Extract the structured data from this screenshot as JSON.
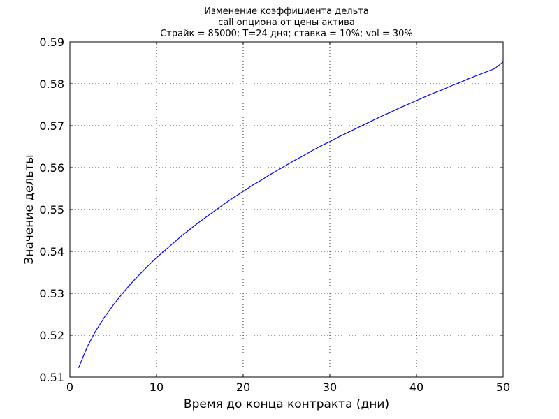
{
  "chart_data": {
    "type": "line",
    "title": [
      "Изменение коэффициента дельта",
      "call опциона от цены актива",
      "Страйк = 85000; T=24 дня; ставка = 10%; vol = 30%"
    ],
    "xlabel": "Время до конца контракта (дни)",
    "ylabel": "Значение дельты",
    "xlim": [
      0,
      50
    ],
    "ylim": [
      0.51,
      0.59
    ],
    "xticks": [
      0,
      10,
      20,
      30,
      40,
      50
    ],
    "xtick_labels": [
      "0",
      "10",
      "20",
      "30",
      "40",
      "50"
    ],
    "yticks": [
      0.51,
      0.52,
      0.53,
      0.54,
      0.55,
      0.56,
      0.57,
      0.58,
      0.59
    ],
    "ytick_labels": [
      "0.51",
      "0.52",
      "0.53",
      "0.54",
      "0.55",
      "0.56",
      "0.57",
      "0.58",
      "0.59"
    ],
    "grid": true,
    "line_color": "#0000ff",
    "series": [
      {
        "x": [
          1,
          2,
          3,
          4,
          5,
          6,
          7,
          8,
          9,
          10,
          11,
          12,
          13,
          14,
          15,
          16,
          17,
          18,
          19,
          20,
          21,
          22,
          23,
          24,
          25,
          26,
          27,
          28,
          29,
          30,
          31,
          32,
          33,
          34,
          35,
          36,
          37,
          38,
          39,
          40,
          41,
          42,
          43,
          44,
          45,
          46,
          47,
          48,
          49,
          50
        ],
        "y": [
          0.5122,
          0.5172,
          0.5211,
          0.5243,
          0.5272,
          0.5298,
          0.5322,
          0.5344,
          0.5365,
          0.5385,
          0.5403,
          0.5421,
          0.5439,
          0.5455,
          0.5471,
          0.5486,
          0.5501,
          0.5516,
          0.553,
          0.5543,
          0.5557,
          0.5569,
          0.5582,
          0.5594,
          0.5606,
          0.5618,
          0.5629,
          0.5641,
          0.5652,
          0.5662,
          0.5673,
          0.5683,
          0.5693,
          0.5703,
          0.5713,
          0.5723,
          0.5732,
          0.5742,
          0.5751,
          0.576,
          0.5769,
          0.5778,
          0.5786,
          0.5795,
          0.5803,
          0.5812,
          0.582,
          0.5828,
          0.5836,
          0.5852
        ]
      }
    ]
  }
}
